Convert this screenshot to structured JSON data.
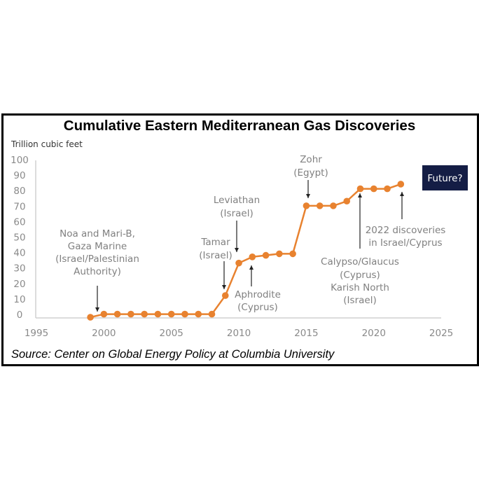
{
  "chart_data": {
    "type": "line",
    "title": "Cumulative Eastern Mediterranean Gas Discoveries",
    "ylabel": "Trillion cubic feet",
    "xlabel": "",
    "source": "Source: Center on Global Energy Policy at Columbia University",
    "xlim": [
      1995,
      2025
    ],
    "ylim": [
      0,
      100
    ],
    "x_ticks": [
      "1995",
      "2000",
      "2005",
      "2010",
      "2015",
      "2020",
      "2025"
    ],
    "y_ticks": [
      "0",
      "10",
      "20",
      "30",
      "40",
      "50",
      "60",
      "70",
      "80",
      "90",
      "100"
    ],
    "grid": false,
    "series_color": "#e8822f",
    "x": [
      1999,
      2000,
      2001,
      2002,
      2003,
      2004,
      2005,
      2006,
      2007,
      2008,
      2009,
      2010,
      2011,
      2012,
      2013,
      2014,
      2015,
      2016,
      2017,
      2018,
      2019,
      2020,
      2021,
      2022
    ],
    "values": [
      0,
      2,
      2,
      2,
      2,
      2,
      2,
      2,
      2,
      2,
      14,
      35,
      39,
      40,
      41,
      41,
      72,
      72,
      72,
      75,
      83,
      83,
      83,
      86
    ],
    "annotations": [
      {
        "lines": [
          "Noa and Mari-B,",
          "Gaza Marine",
          "(Israel/Palestinian",
          "Authority)"
        ],
        "year": 2000
      },
      {
        "lines": [
          "Tamar",
          "(Israel)"
        ],
        "year": 2009
      },
      {
        "lines": [
          "Leviathan",
          "(Israel)"
        ],
        "year": 2010
      },
      {
        "lines": [
          "Aphrodite",
          "(Cyprus)"
        ],
        "year": 2011
      },
      {
        "lines": [
          "Zohr",
          "(Egypt)"
        ],
        "year": 2015
      },
      {
        "lines": [
          "Calypso/Glaucus",
          "(Cyprus)",
          "Karish North",
          "(Israel)"
        ],
        "year": 2019
      },
      {
        "lines": [
          "2022 discoveries",
          "in Israel/Cyprus"
        ],
        "year": 2022
      }
    ],
    "callout": {
      "label": "Future?",
      "color": "#141d45"
    }
  }
}
